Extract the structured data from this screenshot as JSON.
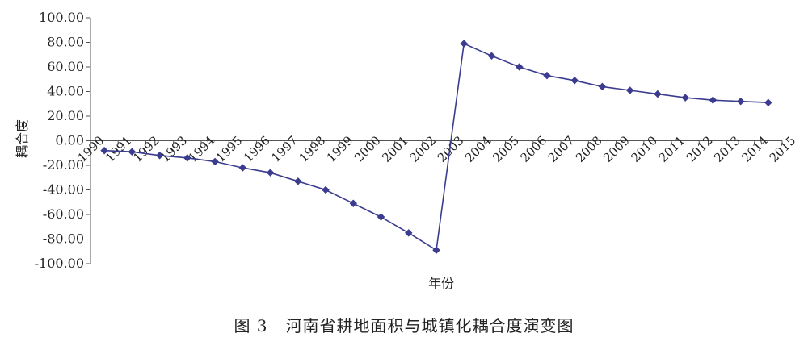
{
  "chart_data": {
    "type": "line",
    "title": "",
    "xlabel": "年份",
    "ylabel": "耦合度",
    "ylim": [
      -100,
      100
    ],
    "y_ticks": [
      "100.00",
      "80.00",
      "60.00",
      "40.00",
      "20.00",
      "0.00",
      "-20.00",
      "-40.00",
      "-60.00",
      "-80.00",
      "-100.00"
    ],
    "categories": [
      "1990",
      "1991",
      "1992",
      "1993",
      "1994",
      "1995",
      "1996",
      "1997",
      "1998",
      "1999",
      "2000",
      "2001",
      "2002",
      "2003",
      "2004",
      "2005",
      "2006",
      "2007",
      "2008",
      "2009",
      "2010",
      "2011",
      "2012",
      "2013",
      "2014",
      "2015"
    ],
    "series": [
      {
        "x": [
          "1990",
          "1991",
          "1992",
          "1993",
          "1994",
          "1995",
          "1996",
          "1997",
          "1998",
          "1999",
          "2000",
          "2001",
          "2002",
          "2003",
          "2004",
          "2005",
          "2006",
          "2007",
          "2008",
          "2009",
          "2010",
          "2011",
          "2012",
          "2013",
          "2014"
        ],
        "values": [
          -8,
          -9,
          -12,
          -14,
          -17,
          -22,
          -26,
          -33,
          -40,
          -51,
          -62,
          -75,
          -89,
          79,
          69,
          60,
          53,
          49,
          44,
          41,
          38,
          35,
          33,
          32,
          31
        ]
      }
    ],
    "grid": false,
    "legend": "none",
    "marker": "diamond",
    "line_color": "#3b3b8f"
  },
  "caption": {
    "figure_number": "图 3",
    "text": "河南省耕地面积与城镇化耦合度演变图"
  }
}
